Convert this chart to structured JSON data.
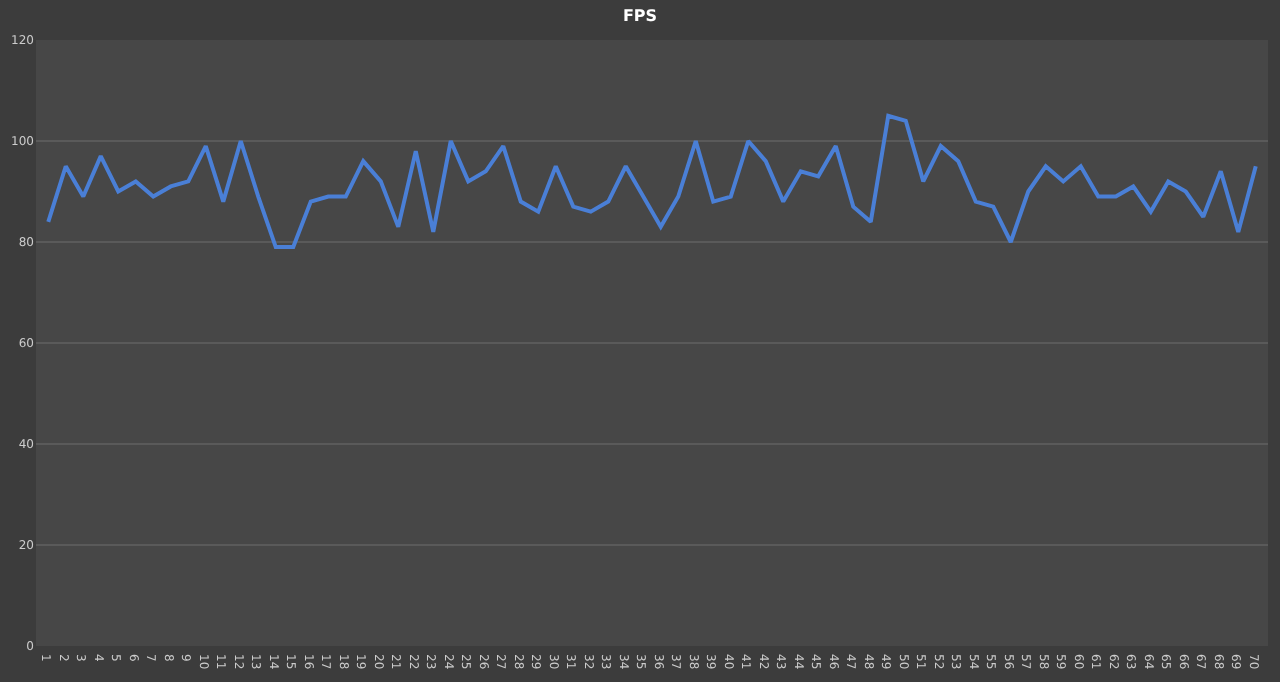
{
  "chart_data": {
    "type": "line",
    "title": "FPS",
    "categories": [
      "1",
      "2",
      "3",
      "4",
      "5",
      "6",
      "7",
      "8",
      "9",
      "10",
      "11",
      "12",
      "13",
      "14",
      "15",
      "16",
      "17",
      "18",
      "19",
      "20",
      "21",
      "22",
      "23",
      "24",
      "25",
      "26",
      "27",
      "28",
      "29",
      "30",
      "31",
      "32",
      "33",
      "34",
      "35",
      "36",
      "37",
      "38",
      "39",
      "40",
      "41",
      "42",
      "43",
      "44",
      "45",
      "46",
      "47",
      "48",
      "49",
      "50",
      "51",
      "52",
      "53",
      "54",
      "55",
      "56",
      "57",
      "58",
      "59",
      "60",
      "61",
      "62",
      "63",
      "64",
      "65",
      "66",
      "67",
      "68",
      "69",
      "70"
    ],
    "series": [
      {
        "color": "#4a7fd6",
        "values": [
          84,
          95,
          89,
          97,
          90,
          92,
          89,
          91,
          92,
          99,
          88,
          100,
          89,
          79,
          79,
          88,
          89,
          89,
          96,
          92,
          83,
          98,
          82,
          100,
          92,
          94,
          99,
          88,
          86,
          95,
          87,
          86,
          88,
          95,
          89,
          83,
          89,
          100,
          88,
          89,
          100,
          96,
          88,
          94,
          93,
          99,
          87,
          84,
          105,
          104,
          92,
          99,
          96,
          88,
          87,
          80,
          90,
          95,
          92,
          95,
          89,
          89,
          91,
          86,
          92,
          90,
          85,
          94,
          82,
          95
        ]
      }
    ],
    "ylim": [
      0,
      120
    ],
    "yticks": [
      0,
      20,
      40,
      60,
      80,
      100,
      120
    ],
    "grid": "y",
    "marker": "none",
    "line_style": "solid",
    "legend": false
  }
}
